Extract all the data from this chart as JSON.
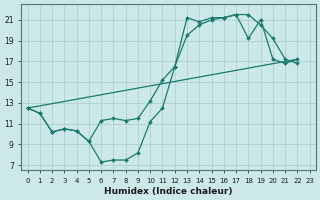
{
  "xlabel": "Humidex (Indice chaleur)",
  "xlim": [
    -0.5,
    23.5
  ],
  "ylim": [
    6.5,
    22.5
  ],
  "xticks": [
    0,
    1,
    2,
    3,
    4,
    5,
    6,
    7,
    8,
    9,
    10,
    11,
    12,
    13,
    14,
    15,
    16,
    17,
    18,
    19,
    20,
    21,
    22,
    23
  ],
  "yticks": [
    7,
    9,
    11,
    13,
    15,
    17,
    19,
    21
  ],
  "bg_color": "#cce8e8",
  "grid_color": "#b0d0d0",
  "line_color": "#1a7a6e",
  "lines": [
    {
      "x": [
        0,
        1,
        2,
        3,
        4,
        5,
        6,
        7,
        8,
        9,
        10,
        11,
        12,
        13,
        14,
        15,
        16,
        17,
        18,
        19,
        20,
        21,
        22
      ],
      "y": [
        12.5,
        12.0,
        10.2,
        10.5,
        10.3,
        9.3,
        7.3,
        7.5,
        7.5,
        8.2,
        11.2,
        12.5,
        16.5,
        21.2,
        20.8,
        21.2,
        21.2,
        21.5,
        19.2,
        21.0,
        17.2,
        16.8,
        17.2
      ]
    },
    {
      "x": [
        0,
        22
      ],
      "y": [
        12.5,
        17.2
      ]
    },
    {
      "x": [
        0,
        1,
        2,
        3,
        4,
        5,
        6,
        7,
        8,
        9,
        10,
        11,
        12,
        13,
        14,
        15,
        16,
        17,
        18,
        19,
        20,
        21,
        22
      ],
      "y": [
        12.5,
        12.0,
        10.2,
        10.5,
        10.3,
        9.3,
        11.3,
        11.5,
        11.3,
        11.5,
        13.2,
        15.2,
        16.5,
        19.5,
        20.5,
        21.0,
        21.2,
        21.5,
        21.5,
        20.5,
        19.2,
        17.2,
        16.8
      ]
    }
  ]
}
